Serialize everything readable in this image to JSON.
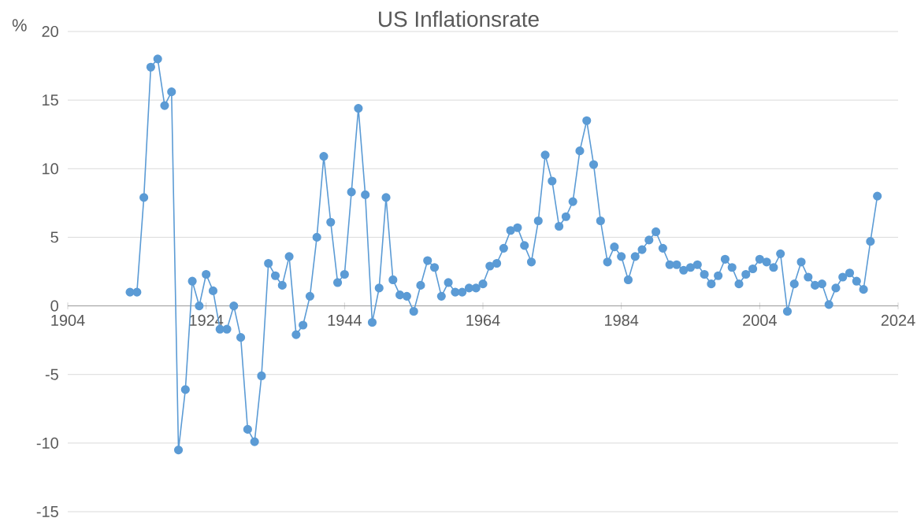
{
  "chart_data": {
    "type": "line",
    "title": "US Inflationsrate",
    "ylabel": "%",
    "x": [
      1913,
      1914,
      1915,
      1916,
      1917,
      1918,
      1919,
      1920,
      1921,
      1922,
      1923,
      1924,
      1925,
      1926,
      1927,
      1928,
      1929,
      1930,
      1931,
      1932,
      1933,
      1934,
      1935,
      1936,
      1937,
      1938,
      1939,
      1940,
      1941,
      1942,
      1943,
      1944,
      1945,
      1946,
      1947,
      1948,
      1949,
      1950,
      1951,
      1952,
      1953,
      1954,
      1955,
      1956,
      1957,
      1958,
      1959,
      1960,
      1961,
      1962,
      1963,
      1964,
      1965,
      1966,
      1967,
      1968,
      1969,
      1970,
      1971,
      1972,
      1973,
      1974,
      1975,
      1976,
      1977,
      1978,
      1979,
      1980,
      1981,
      1982,
      1983,
      1984,
      1985,
      1986,
      1987,
      1988,
      1989,
      1990,
      1991,
      1992,
      1993,
      1994,
      1995,
      1996,
      1997,
      1998,
      1999,
      2000,
      2001,
      2002,
      2003,
      2004,
      2005,
      2006,
      2007,
      2008,
      2009,
      2010,
      2011,
      2012,
      2013,
      2014,
      2015,
      2016,
      2017,
      2018,
      2019,
      2020,
      2021
    ],
    "values": [
      1.0,
      1.0,
      7.9,
      17.4,
      18.0,
      14.6,
      15.6,
      -10.5,
      -6.1,
      1.8,
      0.0,
      2.3,
      1.1,
      -1.7,
      -1.7,
      0.0,
      -2.3,
      -9.0,
      -9.9,
      -5.1,
      3.1,
      2.2,
      1.5,
      3.6,
      -2.1,
      -1.4,
      0.7,
      5.0,
      10.9,
      6.1,
      1.7,
      2.3,
      8.3,
      14.4,
      8.1,
      -1.2,
      1.3,
      7.9,
      1.9,
      0.8,
      0.7,
      -0.4,
      1.5,
      3.3,
      2.8,
      0.7,
      1.7,
      1.0,
      1.0,
      1.3,
      1.3,
      1.6,
      2.9,
      3.1,
      4.2,
      5.5,
      5.7,
      4.4,
      3.2,
      6.2,
      11.0,
      9.1,
      5.8,
      6.5,
      7.6,
      11.3,
      13.5,
      10.3,
      6.2,
      3.2,
      4.3,
      3.6,
      1.9,
      3.6,
      4.1,
      4.8,
      5.4,
      4.2,
      3.0,
      3.0,
      2.6,
      2.8,
      3.0,
      2.3,
      1.6,
      2.2,
      3.4,
      2.8,
      1.6,
      2.3,
      2.7,
      3.4,
      3.2,
      2.8,
      3.8,
      -0.4,
      1.6,
      3.2,
      2.1,
      1.5,
      1.6,
      0.1,
      1.3,
      2.1,
      2.4,
      1.8,
      1.2,
      4.7,
      8.0
    ],
    "color": "#5b9bd5",
    "marker": "circle",
    "grid": "y",
    "xlim": [
      1904,
      2024
    ],
    "xticks": [
      1904,
      1924,
      1944,
      1964,
      1984,
      2004,
      2024
    ],
    "ylim": [
      -15,
      20
    ],
    "yticks": [
      -15,
      -10,
      -5,
      0,
      5,
      10,
      15,
      20
    ]
  }
}
